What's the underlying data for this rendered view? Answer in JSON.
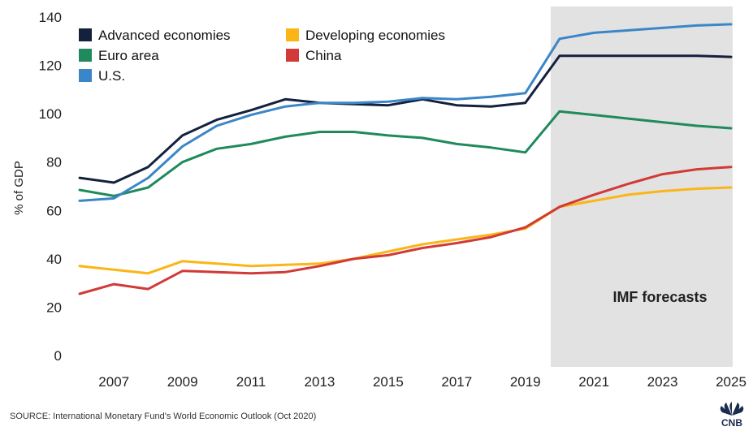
{
  "chart_data": {
    "type": "line",
    "ylabel": "% of GDP",
    "ylim": [
      0,
      140
    ],
    "yticks": [
      0,
      20,
      40,
      60,
      80,
      100,
      120,
      140
    ],
    "xlim": [
      2006,
      2025
    ],
    "xticks": [
      2007,
      2009,
      2011,
      2013,
      2015,
      2017,
      2019,
      2021,
      2023,
      2025
    ],
    "x": [
      2006,
      2007,
      2008,
      2009,
      2010,
      2011,
      2012,
      2013,
      2014,
      2015,
      2016,
      2017,
      2018,
      2019,
      2020,
      2021,
      2022,
      2023,
      2024,
      2025
    ],
    "series": [
      {
        "name": "Advanced economies",
        "color": "#14213d",
        "values": [
          73.5,
          71.5,
          78,
          91,
          97.5,
          101.5,
          106,
          104.5,
          104,
          103.5,
          106,
          103.5,
          103,
          104.5,
          124,
          124,
          124,
          124,
          124,
          123.5
        ]
      },
      {
        "name": "Euro area",
        "color": "#1f8a5b",
        "values": [
          68.5,
          66,
          69.5,
          80,
          85.5,
          87.5,
          90.5,
          92.5,
          92.5,
          91,
          90,
          87.5,
          86,
          84,
          101,
          99.5,
          98,
          96.5,
          95,
          94
        ]
      },
      {
        "name": "U.S.",
        "color": "#3b86c8",
        "values": [
          64,
          65,
          73.5,
          86.5,
          95,
          99.5,
          103,
          104.5,
          104.5,
          105,
          106.5,
          106,
          107,
          108.5,
          131,
          133.5,
          134.5,
          135.5,
          136.5,
          137
        ]
      },
      {
        "name": "Developing economies",
        "color": "#fbb516",
        "values": [
          37,
          35.5,
          34,
          39,
          38,
          37,
          37.5,
          38,
          40,
          43,
          46,
          48,
          50,
          52.5,
          61.5,
          64,
          66.5,
          68,
          69,
          69.5
        ]
      },
      {
        "name": "China",
        "color": "#d13a36",
        "values": [
          25.5,
          29.5,
          27.5,
          35,
          34.5,
          34,
          34.5,
          37,
          40,
          41.5,
          44.5,
          46.5,
          49,
          53,
          61.5,
          66.5,
          71,
          75,
          77,
          78
        ]
      }
    ],
    "forecast_region": {
      "start": 2020,
      "end": 2025,
      "label": "IMF forecasts",
      "color": "#e2e2e2"
    },
    "legend": {
      "placement": "top-left",
      "columns": 2
    },
    "grid": false
  },
  "footer": {
    "source": "SOURCE: International Monetary Fund's World Economic Outlook (Oct 2020)",
    "logo_text": "CNB"
  }
}
